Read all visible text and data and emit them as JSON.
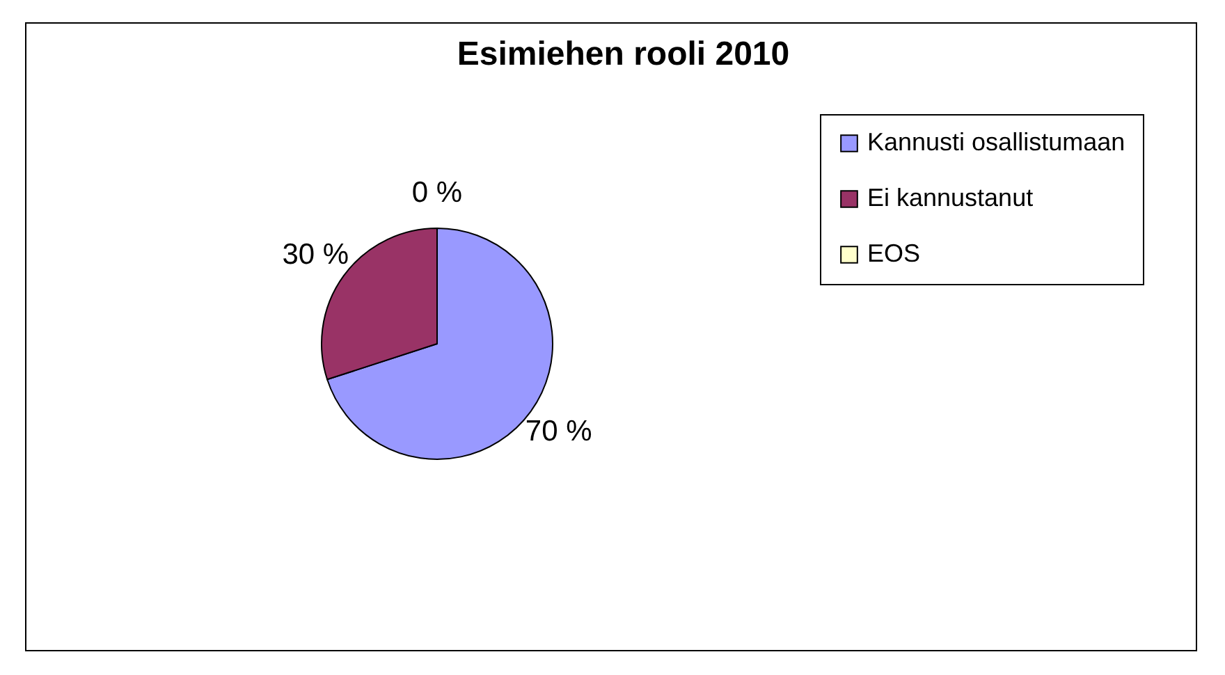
{
  "chart_data": {
    "type": "pie",
    "title": "Esimiehen rooli 2010",
    "categories": [
      "Kannusti osallistumaan",
      "Ei kannustanut",
      "EOS"
    ],
    "values": [
      70,
      30,
      0
    ],
    "colors": [
      "#9999ff",
      "#993366",
      "#ffffcc"
    ],
    "value_labels": [
      "70 %",
      "30 %",
      "0 %"
    ],
    "legend": "right"
  }
}
